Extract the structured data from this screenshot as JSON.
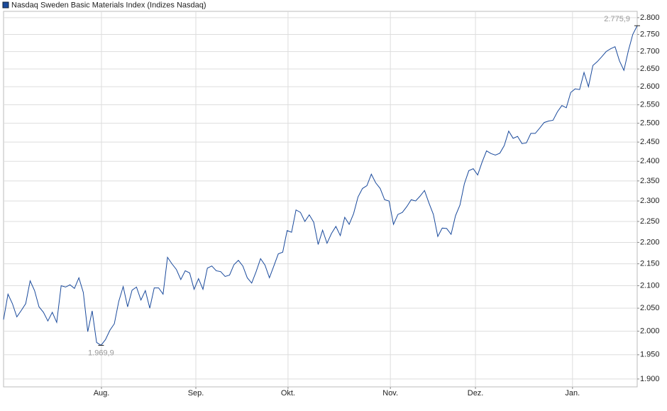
{
  "chart_data": {
    "type": "line",
    "title": "Nasdaq Sweden Basic Materials Index  (Indizes Nasdaq)",
    "series": [
      {
        "name": "Nasdaq Sweden Basic Materials Index  (Indizes Nasdaq)",
        "color": "#1a4a9c",
        "values": [
          2025,
          2081,
          2060,
          2031,
          2045,
          2060,
          2111,
          2089,
          2053,
          2041,
          2022,
          2041,
          2019,
          2100,
          2097,
          2102,
          2094,
          2118,
          2085,
          1999,
          2044,
          1976,
          1969.9,
          1982,
          2002,
          2016,
          2065,
          2098,
          2053,
          2090,
          2097,
          2068,
          2089,
          2050,
          2095,
          2095,
          2081,
          2165,
          2150,
          2137,
          2114,
          2134,
          2129,
          2092,
          2116,
          2092,
          2140,
          2145,
          2134,
          2132,
          2121,
          2124,
          2148,
          2158,
          2145,
          2118,
          2106,
          2132,
          2162,
          2147,
          2118,
          2145,
          2173,
          2177,
          2228,
          2224,
          2278,
          2272,
          2250,
          2266,
          2248,
          2195,
          2229,
          2198,
          2221,
          2238,
          2216,
          2260,
          2243,
          2269,
          2310,
          2331,
          2338,
          2367,
          2345,
          2331,
          2303,
          2300,
          2243,
          2267,
          2272,
          2286,
          2303,
          2300,
          2312,
          2326,
          2295,
          2267,
          2214,
          2234,
          2233,
          2219,
          2264,
          2290,
          2343,
          2376,
          2381,
          2365,
          2398,
          2427,
          2420,
          2416,
          2421,
          2441,
          2479,
          2460,
          2465,
          2446,
          2448,
          2473,
          2473,
          2487,
          2502,
          2506,
          2508,
          2531,
          2548,
          2542,
          2584,
          2594,
          2592,
          2640,
          2600,
          2660,
          2671,
          2685,
          2700,
          2708,
          2714,
          2673,
          2646,
          2702,
          2750,
          2775.9
        ]
      }
    ],
    "xlim": [
      0,
      143
    ],
    "xticks": [
      {
        "value": 22.1,
        "label": "Aug."
      },
      {
        "value": 43.4,
        "label": "Sep."
      },
      {
        "value": 64.2,
        "label": "Okt."
      },
      {
        "value": 87.3,
        "label": "Nov."
      },
      {
        "value": 106.5,
        "label": "Dez."
      },
      {
        "value": 128.4,
        "label": "Jan."
      }
    ],
    "ylim": [
      1884,
      2819
    ],
    "log_scale": true,
    "grid": true,
    "yticks": [
      {
        "value": 1900,
        "label": "1.900"
      },
      {
        "value": 1950,
        "label": "1.950"
      },
      {
        "value": 2000,
        "label": "2.000"
      },
      {
        "value": 2050,
        "label": "2.050"
      },
      {
        "value": 2100,
        "label": "2.100"
      },
      {
        "value": 2150,
        "label": "2.150"
      },
      {
        "value": 2200,
        "label": "2.200"
      },
      {
        "value": 2250,
        "label": "2.250"
      },
      {
        "value": 2300,
        "label": "2.300"
      },
      {
        "value": 2350,
        "label": "2.350"
      },
      {
        "value": 2400,
        "label": "2.400"
      },
      {
        "value": 2450,
        "label": "2.450"
      },
      {
        "value": 2500,
        "label": "2.500"
      },
      {
        "value": 2550,
        "label": "2.550"
      },
      {
        "value": 2600,
        "label": "2.600"
      },
      {
        "value": 2650,
        "label": "2.650"
      },
      {
        "value": 2700,
        "label": "2.700"
      },
      {
        "value": 2750,
        "label": "2.750"
      },
      {
        "value": 2800,
        "label": "2.800"
      }
    ],
    "annotations": [
      {
        "x": 22,
        "y": 1969.9,
        "label": "1.969,9"
      },
      {
        "x": 143,
        "y": 2775.9,
        "label": "2.775,9"
      }
    ]
  }
}
